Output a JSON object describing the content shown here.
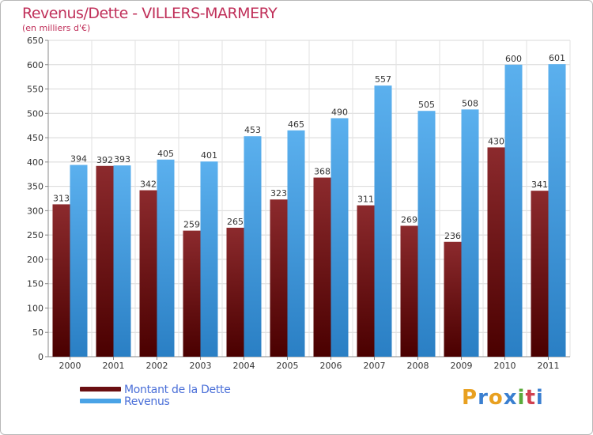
{
  "chart_data": {
    "type": "bar",
    "title": "Revenus/Dette - VILLERS-MARMERY",
    "subtitle": "(en milliers d'€)",
    "categories": [
      "2000",
      "2001",
      "2002",
      "2003",
      "2004",
      "2005",
      "2006",
      "2007",
      "2008",
      "2009",
      "2010",
      "2011"
    ],
    "series": [
      {
        "name": "Montant de la Dette",
        "color": "#7a1f22",
        "values": [
          313,
          392,
          342,
          259,
          265,
          323,
          368,
          311,
          269,
          236,
          430,
          341
        ]
      },
      {
        "name": "Revenus",
        "color": "#4aa3e6",
        "values": [
          394,
          393,
          405,
          401,
          453,
          465,
          490,
          557,
          505,
          508,
          600,
          601
        ]
      }
    ],
    "ylim": [
      0,
      650
    ],
    "yticks": [
      0,
      50,
      100,
      150,
      200,
      250,
      300,
      350,
      400,
      450,
      500,
      550,
      600,
      650
    ],
    "grid": true,
    "legend_position": "bottom-left"
  },
  "brand": {
    "letters": [
      "P",
      "r",
      "o",
      "x",
      "i",
      "t",
      "i"
    ],
    "colors": [
      "#e8a020",
      "#3a7fd0",
      "#e8a020",
      "#3a7fd0",
      "#5aaa3a",
      "#d04050",
      "#3a7fd0"
    ]
  }
}
